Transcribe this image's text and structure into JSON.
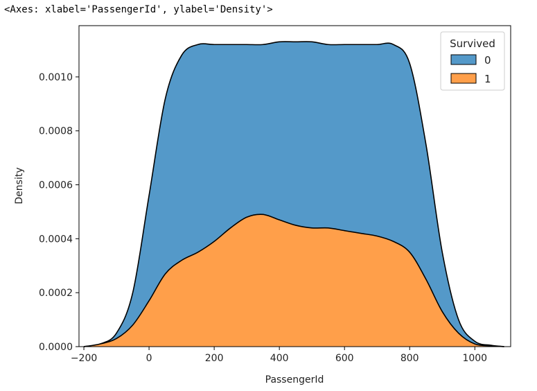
{
  "output_repr": "<Axes: xlabel='PassengerId', ylabel='Density'>",
  "chart_data": {
    "type": "area",
    "stacked": true,
    "xlabel": "PassengerId",
    "ylabel": "Density",
    "xlim": [
      -215,
      1110
    ],
    "ylim": [
      0,
      0.00119
    ],
    "x_ticks": [
      -200,
      0,
      200,
      400,
      600,
      800,
      1000
    ],
    "x_tick_labels": [
      "−200",
      "0",
      "200",
      "400",
      "600",
      "800",
      "1000"
    ],
    "y_ticks": [
      0,
      0.0002,
      0.0004,
      0.0006,
      0.0008,
      0.001
    ],
    "y_tick_labels": [
      "0.0000",
      "0.0002",
      "0.0004",
      "0.0006",
      "0.0008",
      "0.0010"
    ],
    "grid": false,
    "legend": {
      "title": "Survived",
      "placement": "top-right"
    },
    "x": [
      -200,
      -150,
      -100,
      -50,
      0,
      50,
      100,
      150,
      200,
      250,
      300,
      350,
      400,
      450,
      500,
      550,
      600,
      650,
      700,
      750,
      800,
      850,
      900,
      950,
      1000,
      1050,
      1090
    ],
    "series": [
      {
        "name": "1",
        "color": "#ff9f4a",
        "stack_top": [
          0.0,
          1e-05,
          3e-05,
          8e-05,
          0.00017,
          0.00027,
          0.00032,
          0.00035,
          0.00039,
          0.00044,
          0.00048,
          0.00049,
          0.00047,
          0.00045,
          0.00044,
          0.00044,
          0.00043,
          0.00042,
          0.00041,
          0.00039,
          0.00035,
          0.00025,
          0.00013,
          5e-05,
          1e-05,
          3e-06,
          0.0
        ]
      },
      {
        "name": "0",
        "color": "#5499c9",
        "stack_top": [
          0.0,
          1e-05,
          5e-05,
          0.0002,
          0.00056,
          0.00092,
          0.00108,
          0.00112,
          0.00112,
          0.00112,
          0.00112,
          0.00112,
          0.00113,
          0.00113,
          0.00113,
          0.00112,
          0.00112,
          0.00112,
          0.00112,
          0.00112,
          0.00105,
          0.00075,
          0.00035,
          0.0001,
          2e-05,
          5e-06,
          0.0
        ]
      }
    ]
  }
}
